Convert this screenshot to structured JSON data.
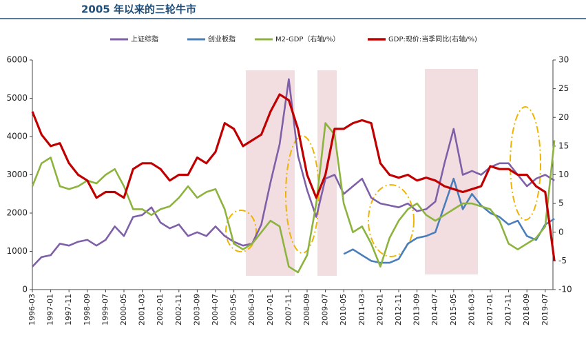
{
  "chart_data": {
    "type": "line",
    "title": "2005 年以来的三轮牛市",
    "categories": [
      "1996-03",
      null,
      "1997-01",
      null,
      "1997-11",
      null,
      "1998-09",
      null,
      "1999-07",
      null,
      "2000-05",
      null,
      "2001-03",
      null,
      "2002-01",
      null,
      "2002-11",
      null,
      "2003-09",
      null,
      "2004-07",
      null,
      "2005-05",
      null,
      "2006-03",
      null,
      "2007-01",
      null,
      "2007-11",
      null,
      "2008-09",
      null,
      "2009-07",
      null,
      "2010-05",
      null,
      "2011-03",
      null,
      "2012-01",
      null,
      "2012-11",
      null,
      "2013-09",
      null,
      "2014-07",
      null,
      "2015-05",
      null,
      "2016-03",
      null,
      "2017-01",
      null,
      "2017-11",
      null,
      "2018-09",
      null,
      "2019-07",
      null
    ],
    "series": [
      {
        "name": "上证综指",
        "color": "#7e5fa8",
        "axis": "y",
        "values": [
          600,
          850,
          900,
          1200,
          1150,
          1250,
          1300,
          1150,
          1300,
          1650,
          1400,
          1900,
          1950,
          2150,
          1750,
          1600,
          1700,
          1400,
          1500,
          1400,
          1650,
          1400,
          1250,
          1150,
          1200,
          1700,
          2800,
          3800,
          5500,
          3500,
          2600,
          1900,
          2900,
          3000,
          2500,
          2700,
          2900,
          2400,
          2250,
          2200,
          2150,
          2250,
          2050,
          2100,
          2300,
          3300,
          4200,
          3000,
          3100,
          3000,
          3200,
          3300,
          3300,
          3000,
          2700,
          2900,
          3000,
          2850
        ]
      },
      {
        "name": "创业板指",
        "color": "#4a7ebb",
        "axis": "y",
        "values": [
          null,
          null,
          null,
          null,
          null,
          null,
          null,
          null,
          null,
          null,
          null,
          null,
          null,
          null,
          null,
          null,
          null,
          null,
          null,
          null,
          null,
          null,
          null,
          null,
          null,
          null,
          null,
          null,
          null,
          null,
          null,
          null,
          null,
          null,
          930,
          1050,
          900,
          750,
          700,
          700,
          800,
          1200,
          1350,
          1400,
          1500,
          2200,
          2900,
          2100,
          2500,
          2200,
          2000,
          1900,
          1700,
          1800,
          1400,
          1300,
          1700,
          1850
        ]
      },
      {
        "name": "M2-GDP（右轴/%）",
        "color": "#8db33f",
        "axis": "y2",
        "values": [
          8,
          12,
          13,
          8,
          7.5,
          8,
          9,
          8.5,
          10,
          11,
          8,
          4,
          4,
          3,
          4,
          4.5,
          6,
          8,
          6,
          7,
          7.5,
          4,
          -2,
          -3,
          -2,
          0,
          2,
          1,
          -6,
          -7,
          -4,
          5,
          19,
          17,
          5,
          0,
          1,
          -2,
          -6,
          -1,
          2,
          4,
          5,
          3,
          2,
          3,
          4,
          5,
          5,
          4.5,
          4,
          2,
          -2,
          -3,
          -2,
          -1,
          1,
          16
        ]
      },
      {
        "name": "GDP:现价:当季同比(右轴/%)",
        "color": "#c00000",
        "axis": "y2",
        "values": [
          21,
          17,
          15,
          15.5,
          12,
          10,
          9,
          6,
          7,
          7,
          6,
          11,
          12,
          12,
          11,
          9,
          10,
          10,
          13,
          12,
          14,
          19,
          18,
          15,
          16,
          17,
          21,
          24,
          23,
          18,
          10,
          6,
          10,
          18,
          18,
          19,
          19.5,
          19,
          12,
          10,
          9.5,
          10,
          9,
          9.5,
          9,
          8,
          7.5,
          7,
          7.5,
          8,
          11.5,
          11,
          11,
          10,
          10,
          8,
          7,
          -5
        ]
      }
    ],
    "ylim": [
      0,
      6000
    ],
    "yticks": [
      0,
      1000,
      2000,
      3000,
      4000,
      5000,
      6000
    ],
    "y2lim": [
      -10,
      30
    ],
    "y2ticks": [
      -10,
      -5,
      0,
      5,
      10,
      15,
      20,
      25,
      30
    ]
  }
}
